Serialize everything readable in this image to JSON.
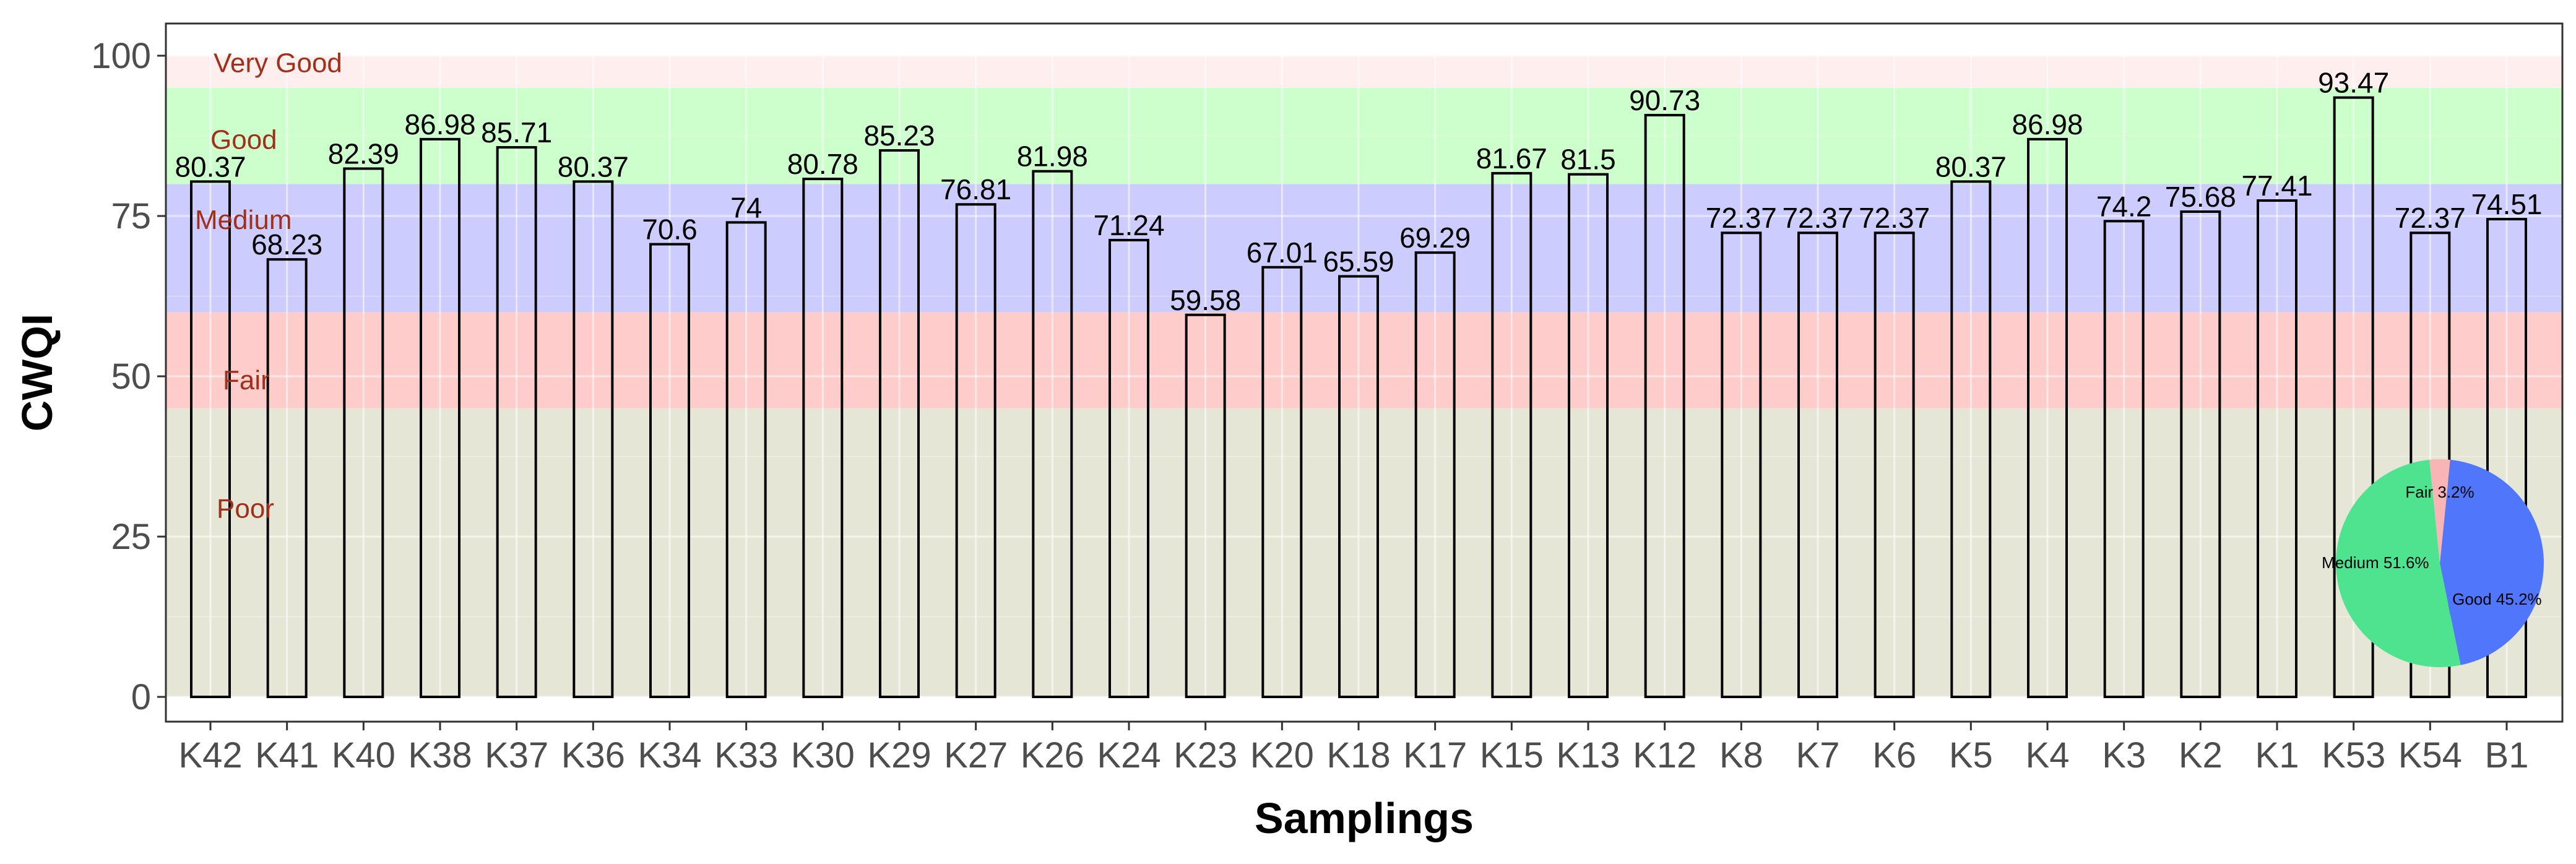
{
  "chart_data": {
    "type": "bar",
    "xlabel": "Samplings",
    "ylabel": "CWQI",
    "ylim": [
      0,
      100
    ],
    "yticks": [
      0,
      25,
      50,
      75,
      100
    ],
    "grid": true,
    "categories": [
      "K42",
      "K41",
      "K40",
      "K38",
      "K37",
      "K36",
      "K34",
      "K33",
      "K30",
      "K29",
      "K27",
      "K26",
      "K24",
      "K23",
      "K20",
      "K18",
      "K17",
      "K15",
      "K13",
      "K12",
      "K8",
      "K7",
      "K6",
      "K5",
      "K4",
      "K3",
      "K2",
      "K1",
      "K53",
      "K54",
      "B1"
    ],
    "values": [
      80.37,
      68.23,
      82.39,
      86.98,
      85.71,
      80.37,
      70.6,
      74,
      80.78,
      85.23,
      76.81,
      81.98,
      71.24,
      59.58,
      67.01,
      65.59,
      69.29,
      81.67,
      81.5,
      90.73,
      72.37,
      72.37,
      72.37,
      80.37,
      86.98,
      74.2,
      75.68,
      77.41,
      93.47,
      72.37,
      74.51
    ],
    "value_labels": [
      "80.37",
      "68.23",
      "82.39",
      "86.98",
      "85.71",
      "80.37",
      "70.6",
      "74",
      "80.78",
      "85.23",
      "76.81",
      "81.98",
      "71.24",
      "59.58",
      "67.01",
      "65.59",
      "69.29",
      "81.67",
      "81.5",
      "90.73",
      "72.37",
      "72.37",
      "72.37",
      "80.37",
      "86.98",
      "74.2",
      "75.68",
      "77.41",
      "93.47",
      "72.37",
      "74.51"
    ],
    "bands": [
      {
        "label": "Poor",
        "from": 0,
        "to": 45,
        "color": "#e6e6d7"
      },
      {
        "label": "Fair",
        "from": 45,
        "to": 60,
        "color": "#ffcccc"
      },
      {
        "label": "Medium",
        "from": 60,
        "to": 80,
        "color": "#ccccff"
      },
      {
        "label": "Good",
        "from": 80,
        "to": 95,
        "color": "#ccffcc"
      },
      {
        "label": "Very Good",
        "from": 95,
        "to": 100,
        "color": "#ffeeee"
      }
    ],
    "band_label_color": "#a0301a",
    "inset_pie": {
      "type": "pie",
      "slices": [
        {
          "label": "Good 45.2%",
          "value": 45.2,
          "color": "#4f76fb"
        },
        {
          "label": "Medium 51.6%",
          "value": 51.6,
          "color": "#4ee38f"
        },
        {
          "label": "Fair 3.2%",
          "value": 3.2,
          "color": "#f9b5b5"
        }
      ]
    }
  }
}
